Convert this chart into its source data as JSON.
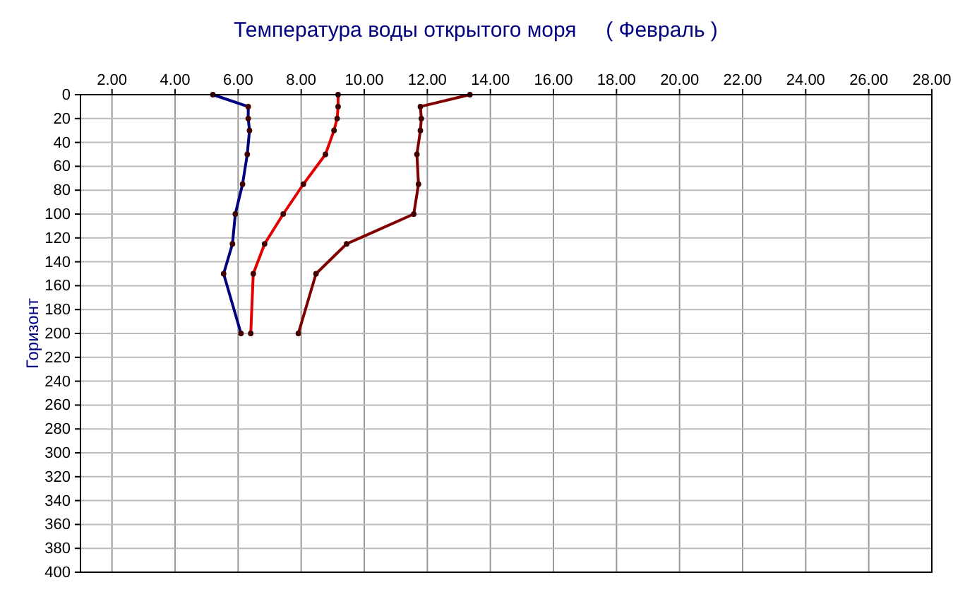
{
  "chart_data": {
    "type": "line",
    "title": "Температура воды открытого моря     ( Февраль )",
    "ylabel": "Горизонт",
    "xlim": [
      1,
      28
    ],
    "xticks": [
      {
        "value": 2,
        "label": "2.00"
      },
      {
        "value": 4,
        "label": "4.00"
      },
      {
        "value": 6,
        "label": "6.00"
      },
      {
        "value": 8,
        "label": "8.00"
      },
      {
        "value": 10,
        "label": "10.00"
      },
      {
        "value": 12,
        "label": "12.00"
      },
      {
        "value": 14,
        "label": "14.00"
      },
      {
        "value": 16,
        "label": "16.00"
      },
      {
        "value": 18,
        "label": "18.00"
      },
      {
        "value": 20,
        "label": "20.00"
      },
      {
        "value": 22,
        "label": "22.00"
      },
      {
        "value": 24,
        "label": "24.00"
      },
      {
        "value": 26,
        "label": "26.00"
      },
      {
        "value": 28,
        "label": "28.00"
      }
    ],
    "ylim": [
      400,
      0
    ],
    "yticks": [
      0,
      20,
      40,
      60,
      80,
      100,
      120,
      140,
      160,
      180,
      200,
      220,
      240,
      260,
      280,
      300,
      320,
      340,
      360,
      380,
      400
    ],
    "grid": true,
    "marker": "circle",
    "line_style": "solid",
    "series": [
      {
        "color": "#000080",
        "x": [
          5.2,
          6.32,
          6.32,
          6.36,
          6.29,
          6.14,
          5.91,
          5.82,
          5.54,
          6.09
        ],
        "values": [
          0,
          10,
          20,
          30,
          50,
          75,
          100,
          125,
          150,
          200
        ]
      },
      {
        "color": "#e00000",
        "x": [
          9.17,
          9.17,
          9.14,
          9.04,
          8.77,
          8.07,
          7.43,
          6.84,
          6.48,
          6.4
        ],
        "values": [
          0,
          10,
          20,
          30,
          50,
          75,
          100,
          125,
          150,
          200
        ]
      },
      {
        "color": "#800000",
        "x": [
          13.35,
          11.78,
          11.81,
          11.78,
          11.67,
          11.72,
          11.57,
          9.44,
          8.47,
          7.91
        ],
        "values": [
          0,
          10,
          20,
          30,
          50,
          75,
          100,
          125,
          150,
          200
        ]
      }
    ]
  }
}
